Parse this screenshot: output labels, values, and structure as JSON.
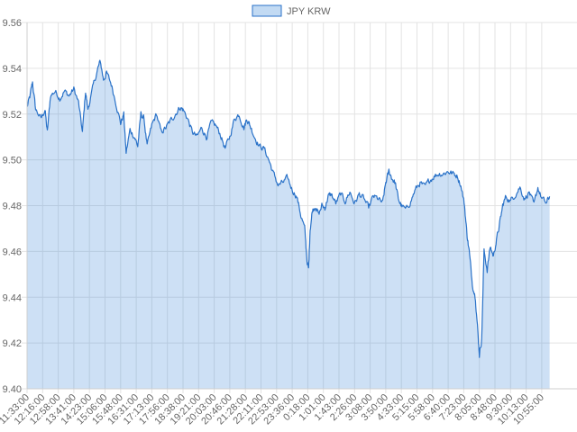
{
  "chart_data": {
    "type": "area",
    "series": [
      {
        "name": "JPY KRW"
      }
    ],
    "legend_position": "top-center",
    "grid": true,
    "ylim": [
      9.4,
      9.56
    ],
    "y_ticks": [
      "9.56",
      "9.54",
      "9.52",
      "9.50",
      "9.48",
      "9.46",
      "9.44",
      "9.42",
      "9.40"
    ],
    "x_tick_labels": [
      "11:33:00",
      "12:16:00",
      "12:58:00",
      "13:41:00",
      "14:23:00",
      "15:06:00",
      "15:48:00",
      "16:31:00",
      "17:13:00",
      "17:56:00",
      "18:38:00",
      "19:21:00",
      "20:03:00",
      "20:46:00",
      "21:28:00",
      "22:11:00",
      "22:53:00",
      "23:36:00",
      "0:18:00",
      "1:01:00",
      "1:43:00",
      "2:26:00",
      "3:08:00",
      "3:50:00",
      "4:33:00",
      "5:15:00",
      "5:58:00",
      "6:40:00",
      "7:23:00",
      "8:05:00",
      "8:48:00",
      "9:30:00",
      "10:13:00",
      "10:55:00"
    ],
    "keypoints": [
      [
        0,
        9.523
      ],
      [
        0.2,
        9.528
      ],
      [
        0.35,
        9.534
      ],
      [
        0.55,
        9.522
      ],
      [
        0.9,
        9.518
      ],
      [
        1.15,
        9.522
      ],
      [
        1.3,
        9.512
      ],
      [
        1.5,
        9.528
      ],
      [
        1.8,
        9.53
      ],
      [
        2.1,
        9.527
      ],
      [
        2.4,
        9.53
      ],
      [
        2.7,
        9.528
      ],
      [
        3.0,
        9.531
      ],
      [
        3.3,
        9.525
      ],
      [
        3.55,
        9.512
      ],
      [
        3.75,
        9.53
      ],
      [
        3.9,
        9.522
      ],
      [
        4.2,
        9.531
      ],
      [
        4.5,
        9.539
      ],
      [
        4.7,
        9.543
      ],
      [
        4.9,
        9.535
      ],
      [
        5.1,
        9.538
      ],
      [
        5.4,
        9.533
      ],
      [
        5.7,
        9.525
      ],
      [
        6.0,
        9.516
      ],
      [
        6.2,
        9.52
      ],
      [
        6.35,
        9.503
      ],
      [
        6.6,
        9.513
      ],
      [
        6.9,
        9.51
      ],
      [
        7.1,
        9.506
      ],
      [
        7.3,
        9.52
      ],
      [
        7.5,
        9.518
      ],
      [
        7.7,
        9.506
      ],
      [
        8.0,
        9.515
      ],
      [
        8.3,
        9.52
      ],
      [
        8.6,
        9.512
      ],
      [
        8.9,
        9.514
      ],
      [
        9.2,
        9.517
      ],
      [
        9.5,
        9.52
      ],
      [
        9.8,
        9.523
      ],
      [
        10.0,
        9.522
      ],
      [
        10.3,
        9.518
      ],
      [
        10.6,
        9.512
      ],
      [
        10.9,
        9.51
      ],
      [
        11.2,
        9.514
      ],
      [
        11.5,
        9.51
      ],
      [
        11.8,
        9.516
      ],
      [
        12.1,
        9.515
      ],
      [
        12.4,
        9.511
      ],
      [
        12.7,
        9.505
      ],
      [
        13.0,
        9.51
      ],
      [
        13.3,
        9.518
      ],
      [
        13.6,
        9.52
      ],
      [
        13.9,
        9.514
      ],
      [
        14.1,
        9.518
      ],
      [
        14.3,
        9.515
      ],
      [
        14.6,
        9.51
      ],
      [
        14.9,
        9.506
      ],
      [
        15.2,
        9.505
      ],
      [
        15.5,
        9.5
      ],
      [
        15.8,
        9.494
      ],
      [
        16.1,
        9.489
      ],
      [
        16.4,
        9.49
      ],
      [
        16.7,
        9.492
      ],
      [
        17.0,
        9.487
      ],
      [
        17.3,
        9.484
      ],
      [
        17.55,
        9.476
      ],
      [
        17.8,
        9.47
      ],
      [
        17.95,
        9.456
      ],
      [
        18.05,
        9.452
      ],
      [
        18.15,
        9.47
      ],
      [
        18.3,
        9.478
      ],
      [
        18.5,
        9.48
      ],
      [
        18.7,
        9.476
      ],
      [
        18.9,
        9.48
      ],
      [
        19.1,
        9.479
      ],
      [
        19.3,
        9.484
      ],
      [
        19.5,
        9.485
      ],
      [
        19.8,
        9.481
      ],
      [
        20.1,
        9.485
      ],
      [
        20.4,
        9.482
      ],
      [
        20.7,
        9.486
      ],
      [
        21.0,
        9.481
      ],
      [
        21.3,
        9.485
      ],
      [
        21.6,
        9.483
      ],
      [
        21.9,
        9.479
      ],
      [
        22.2,
        9.484
      ],
      [
        22.5,
        9.483
      ],
      [
        22.8,
        9.481
      ],
      [
        23.0,
        9.49
      ],
      [
        23.2,
        9.495
      ],
      [
        23.4,
        9.492
      ],
      [
        23.6,
        9.49
      ],
      [
        23.8,
        9.483
      ],
      [
        24.0,
        9.48
      ],
      [
        24.3,
        9.478
      ],
      [
        24.6,
        9.482
      ],
      [
        24.9,
        9.487
      ],
      [
        25.2,
        9.49
      ],
      [
        25.5,
        9.488
      ],
      [
        25.8,
        9.491
      ],
      [
        26.1,
        9.493
      ],
      [
        26.4,
        9.494
      ],
      [
        26.7,
        9.494
      ],
      [
        27.0,
        9.495
      ],
      [
        27.3,
        9.494
      ],
      [
        27.6,
        9.493
      ],
      [
        27.85,
        9.488
      ],
      [
        28.05,
        9.48
      ],
      [
        28.2,
        9.468
      ],
      [
        28.35,
        9.46
      ],
      [
        28.55,
        9.446
      ],
      [
        28.75,
        9.44
      ],
      [
        28.9,
        9.425
      ],
      [
        29.0,
        9.415
      ],
      [
        29.15,
        9.422
      ],
      [
        29.3,
        9.46
      ],
      [
        29.5,
        9.452
      ],
      [
        29.7,
        9.462
      ],
      [
        29.9,
        9.458
      ],
      [
        30.1,
        9.465
      ],
      [
        30.3,
        9.472
      ],
      [
        30.5,
        9.48
      ],
      [
        30.7,
        9.484
      ],
      [
        31.0,
        9.482
      ],
      [
        31.3,
        9.485
      ],
      [
        31.6,
        9.488
      ],
      [
        31.9,
        9.483
      ],
      [
        32.2,
        9.486
      ],
      [
        32.5,
        9.48
      ],
      [
        32.75,
        9.488
      ],
      [
        33.0,
        9.483
      ],
      [
        33.3,
        9.481
      ],
      [
        33.5,
        9.484
      ]
    ]
  }
}
